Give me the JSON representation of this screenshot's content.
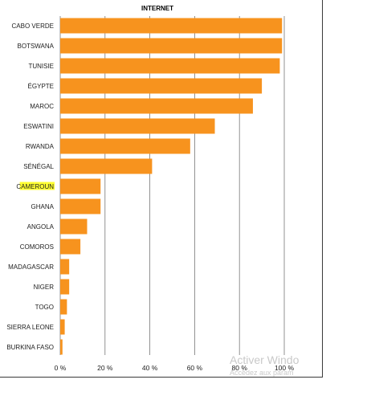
{
  "chart_data": {
    "type": "bar",
    "orientation": "horizontal",
    "title": "INTERNET",
    "categories": [
      "CABO VERDE",
      "BOTSWANA",
      "TUNISIE",
      "ÉGYPTE",
      "MAROC",
      "ESWATINI",
      "RWANDA",
      "SÉNÉGAL",
      "CAMEROUN",
      "GHANA",
      "ANGOLA",
      "COMOROS",
      "MADAGASCAR",
      "NIGER",
      "TOGO",
      "SIERRA LEONE",
      "BURKINA FASO"
    ],
    "values": [
      99,
      99,
      98,
      90,
      86,
      69,
      58,
      41,
      18,
      18,
      12,
      9,
      4,
      4,
      3,
      2,
      1
    ],
    "highlight_category": "CAMEROUN",
    "xlim": [
      0,
      100
    ],
    "xticks": [
      "0 %",
      "20 %",
      "40 %",
      "60 %",
      "80 %",
      "100 %"
    ],
    "grid": "vertical",
    "legend": "none",
    "colors": {
      "bar": "#f7931e",
      "highlight": "#ffff33",
      "grid": "#777777"
    }
  },
  "watermark": {
    "line1": "Activer Windo",
    "line2": "Accédez aux param"
  }
}
